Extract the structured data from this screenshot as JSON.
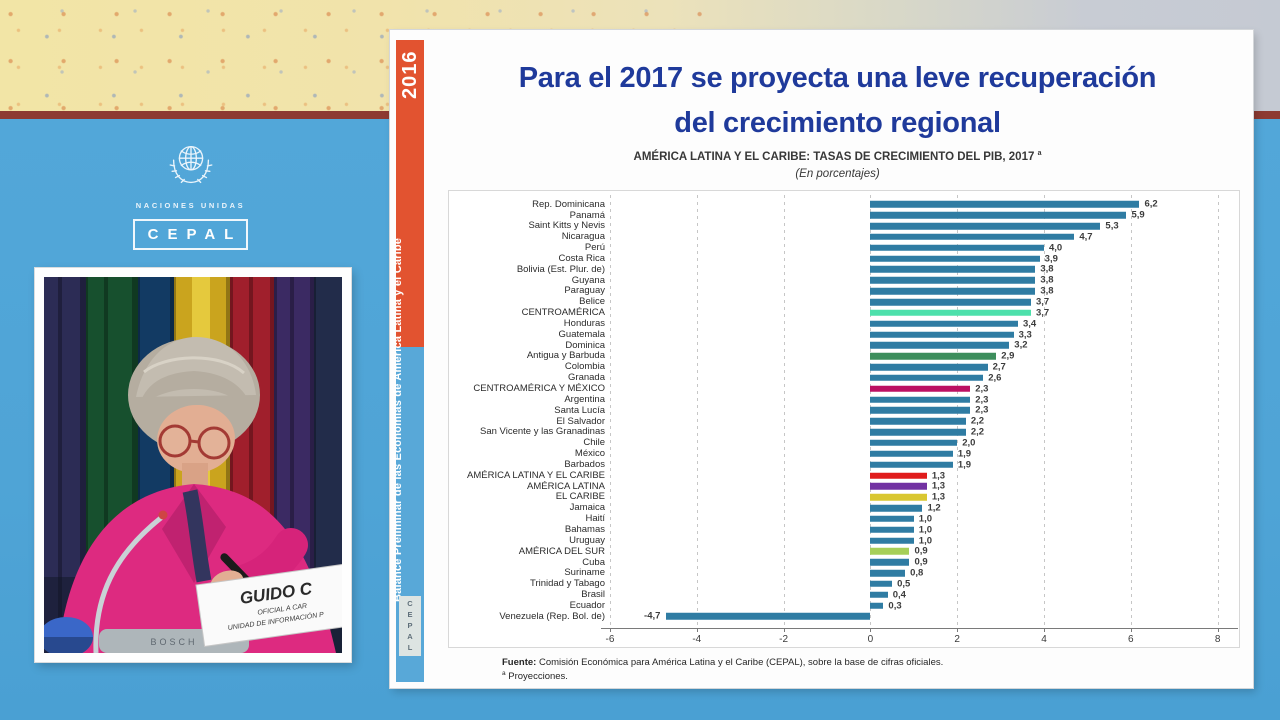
{
  "backdrop": {
    "org_name": "NACIONES UNIDAS",
    "org_acronym": "CEPAL"
  },
  "speaker_video": {
    "nameplate_name": "GUIDO C",
    "nameplate_role_1": "OFICIAL A CAR",
    "nameplate_role_2": "UNIDAD DE INFORMACIÓN P",
    "mic_brand": "BOSCH"
  },
  "slide": {
    "sidebar": {
      "year": "2016",
      "series_title": "Balance Preliminar de las Economías de América Latina y el Caribe",
      "logo_text": "CEPAL"
    },
    "title_line1": "Para el 2017 se proyecta una leve recuperación",
    "title_line2": "del crecimiento regional",
    "chart_heading": "AMÉRICA LATINA Y EL CARIBE: TASAS DE CRECIMIENTO DEL PIB, 2017",
    "chart_heading_superscript": "a",
    "chart_subheading": "(En porcentajes)",
    "source_label": "Fuente:",
    "source_text": " Comisión Económica para América Latina y el Caribe (CEPAL), sobre la base de cifras oficiales.",
    "footnote_superscript": "a",
    "footnote_text": " Proyecciones."
  },
  "chart_data": {
    "type": "bar",
    "orientation": "horizontal",
    "title": "AMÉRICA LATINA Y EL CARIBE: TASAS DE CRECIMIENTO DEL PIB, 2017 (En porcentajes)",
    "xlabel": "",
    "ylabel": "",
    "xlim": [
      -6,
      8.47
    ],
    "x_ticks": [
      -6,
      -4,
      -2,
      0,
      2,
      4,
      6,
      8
    ],
    "x_tick_labels": [
      "-6",
      "-4",
      "-2",
      "0",
      "2",
      "4",
      "6",
      "8"
    ],
    "grid": "vertical-dashed",
    "legend": "none",
    "default_bar_color": "#2f7ca3",
    "categories": [
      "Rep. Dominicana",
      "Panamá",
      "Saint Kitts y Nevis",
      "Nicaragua",
      "Perú",
      "Costa Rica",
      "Bolivia (Est. Plur. de)",
      "Guyana",
      "Paraguay",
      "Belice",
      "CENTROAMÉRICA",
      "Honduras",
      "Guatemala",
      "Dominica",
      "Antigua y Barbuda",
      "Colombia",
      "Granada",
      "CENTROAMÉRICA Y MÉXICO",
      "Argentina",
      "Santa Lucía",
      "El Salvador",
      "San Vicente y las Granadinas",
      "Chile",
      "México",
      "Barbados",
      "AMÉRICA LATINA Y EL CARIBE",
      "AMÉRICA LATINA",
      "EL CARIBE",
      "Jamaica",
      "Haití",
      "Bahamas",
      "Uruguay",
      "AMÉRICA DEL SUR",
      "Cuba",
      "Suriname",
      "Trinidad y Tabago",
      "Brasil",
      "Ecuador",
      "Venezuela (Rep. Bol. de)"
    ],
    "values": [
      6.2,
      5.9,
      5.3,
      4.7,
      4.0,
      3.9,
      3.8,
      3.8,
      3.8,
      3.7,
      3.7,
      3.4,
      3.3,
      3.2,
      2.9,
      2.7,
      2.6,
      2.3,
      2.3,
      2.3,
      2.2,
      2.2,
      2.0,
      1.9,
      1.9,
      1.3,
      1.3,
      1.3,
      1.2,
      1.0,
      1.0,
      1.0,
      0.9,
      0.9,
      0.8,
      0.5,
      0.4,
      0.3,
      -4.7
    ],
    "display_values": [
      "6,2",
      "5,9",
      "5,3",
      "4,7",
      "4,0",
      "3,9",
      "3,8",
      "3,8",
      "3,8",
      "3,7",
      "3,7",
      "3,4",
      "3,3",
      "3,2",
      "2,9",
      "2,7",
      "2,6",
      "2,3",
      "2,3",
      "2,3",
      "2,2",
      "2,2",
      "2,0",
      "1,9",
      "1,9",
      "1,3",
      "1,3",
      "1,3",
      "1,2",
      "1,0",
      "1,0",
      "1,0",
      "0,9",
      "0,9",
      "0,8",
      "0,5",
      "0,4",
      "0,3",
      "-4,7"
    ],
    "bar_colors": [
      "",
      "",
      "",
      "",
      "",
      "",
      "",
      "",
      "",
      "",
      "#4de0ab",
      "",
      "",
      "",
      "#3d8e5c",
      "",
      "",
      "#bc1062",
      "",
      "",
      "",
      "",
      "",
      "",
      "",
      "#e01c1c",
      "#7232a2",
      "#d9c730",
      "",
      "",
      "",
      "",
      "#a6cf58",
      "",
      "",
      "",
      "",
      "",
      ""
    ]
  },
  "colors": {
    "wall_blue": "#4fa4d6",
    "maroon_line": "#8d3a32",
    "strip_orange": "#e25330",
    "strip_blue": "#58a8d8",
    "title_navy": "#1f3a9b",
    "default_bar": "#2f7ca3",
    "highlight_centroamerica": "#4de0ab",
    "highlight_antigua": "#3d8e5c",
    "highlight_centroamerica_mexico": "#bc1062",
    "highlight_alc": "#e01c1c",
    "highlight_america_latina": "#7232a2",
    "highlight_caribe": "#d9c730",
    "highlight_america_del_sur": "#a6cf58"
  }
}
